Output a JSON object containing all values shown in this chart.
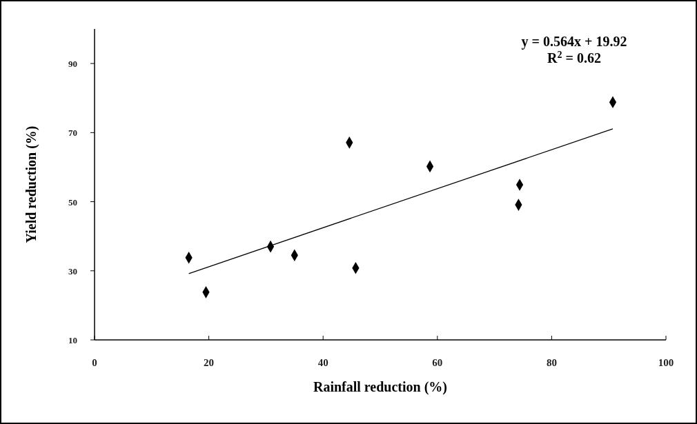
{
  "chart_data": {
    "type": "scatter",
    "xlabel": "Rainfall reduction (%)",
    "ylabel": "Yield reduction (%)",
    "xlim": [
      0,
      100
    ],
    "xticks": [
      0,
      20,
      40,
      60,
      80,
      100
    ],
    "ylim": [
      10,
      100
    ],
    "yticks": [
      10,
      30,
      50,
      70,
      90
    ],
    "grid": false,
    "marker": "diamond",
    "series": [
      {
        "color": "#000000",
        "x": [
          16.5,
          19.5,
          30.8,
          35.0,
          44.6,
          45.7,
          58.7,
          74.2,
          74.4,
          90.7
        ],
        "values": [
          33.8,
          23.8,
          37.0,
          34.5,
          67.1,
          30.8,
          60.2,
          49.1,
          54.9,
          78.8
        ]
      },
      {
        "type": "line",
        "color": "#000000",
        "marker": "none",
        "x": [
          16.5,
          90.7
        ],
        "values": [
          29.2,
          71.1
        ]
      }
    ],
    "annotations": [
      "y = 0.564x + 19.92",
      "R$^{2}$ = 0.62"
    ]
  }
}
